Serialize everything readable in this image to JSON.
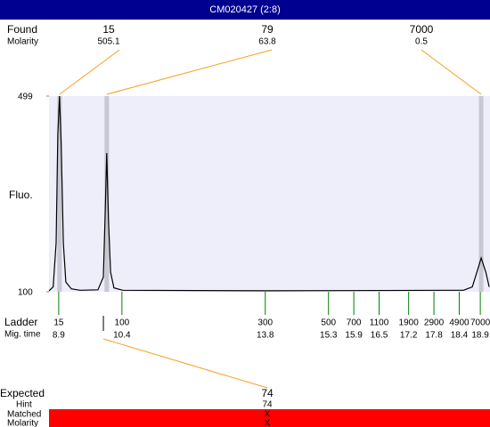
{
  "header": {
    "title": "CM020427 (2:8)"
  },
  "chart_data": {
    "type": "electropherogram",
    "y_label": "Fluo.",
    "xlim": [
      8.67,
      19.13
    ],
    "ylim": [
      100,
      499
    ],
    "yticks": [
      100,
      499
    ],
    "trace": {
      "x": [
        8.67,
        8.77,
        8.84,
        8.88,
        8.92,
        8.96,
        9.01,
        9.07,
        9.2,
        9.41,
        9.83,
        9.96,
        10.0,
        10.04,
        10.08,
        10.13,
        10.21,
        10.42,
        13.85,
        18.5,
        18.71,
        18.82,
        18.92,
        19.03,
        19.11
      ],
      "y": [
        102,
        110,
        200,
        420,
        499,
        400,
        200,
        120,
        106,
        103,
        104,
        130,
        250,
        383,
        250,
        140,
        108,
        103,
        102,
        103,
        110,
        140,
        169,
        140,
        110
      ]
    },
    "found": {
      "label": "Found",
      "molarity_label": "Molarity",
      "peaks": [
        {
          "size": 15,
          "molarity": 505.1,
          "time": 8.92
        },
        {
          "size": 79,
          "molarity": 63.8,
          "time": 10.04
        },
        {
          "size": 7000,
          "molarity": 0.5,
          "time": 18.92
        }
      ]
    },
    "ladder": {
      "label": "Ladder",
      "time_label": "Mig. time",
      "sizes": [
        15,
        100,
        300,
        500,
        700,
        1100,
        1900,
        2900,
        4900,
        7000
      ],
      "times": [
        8.9,
        10.4,
        13.8,
        15.3,
        15.9,
        16.5,
        17.2,
        17.8,
        18.4,
        18.9
      ]
    },
    "expected": {
      "label": "Expected",
      "size": 74,
      "time": 9.96,
      "hint_label": "Hint",
      "hint": 74,
      "matched_label": "Matched",
      "matched": "X",
      "molarity_label": "Molarity",
      "molarity": "X"
    }
  }
}
